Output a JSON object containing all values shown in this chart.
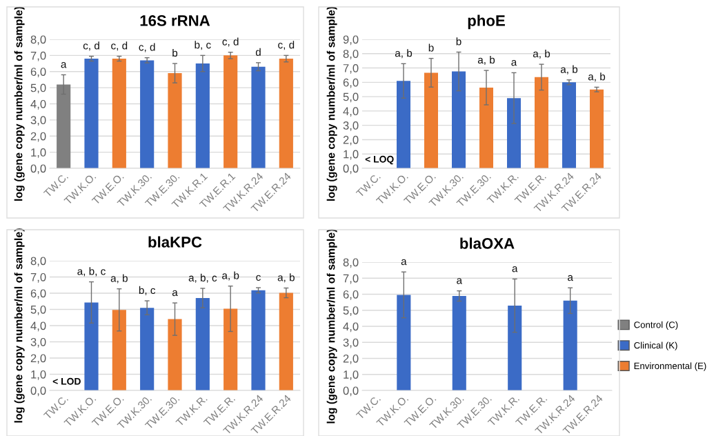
{
  "chart_data": [
    {
      "type": "bar",
      "title": "16S rRNA",
      "ylabel": "log (gene copy number/ml of sample)",
      "grid": "y",
      "categories": [
        "TW.C.",
        "TW.K.O.",
        "TW.E.O.",
        "TW.K.30.",
        "TW.E.30.",
        "TW.K.R.1",
        "TW.E.R.1",
        "TW.K.R.24",
        "TW.E.R.24"
      ],
      "ylim": [
        0,
        8
      ],
      "yticks": [
        {
          "value": 0,
          "label": "0,0"
        },
        {
          "value": 1,
          "label": "1,0"
        },
        {
          "value": 2,
          "label": "2,0"
        },
        {
          "value": 3,
          "label": "3,0"
        },
        {
          "value": 4,
          "label": "4,0"
        },
        {
          "value": 5,
          "label": "5,0"
        },
        {
          "value": 6,
          "label": "6,0"
        },
        {
          "value": 7,
          "label": "7,0"
        },
        {
          "value": 8,
          "label": "8,0"
        }
      ],
      "series": [
        {
          "color": "#808080",
          "values": [
            5.2,
            null,
            null,
            null,
            null,
            null,
            null,
            null,
            null
          ],
          "errors": [
            0.6,
            null,
            null,
            null,
            null,
            null,
            null,
            null,
            null
          ],
          "value_labels": [
            "a",
            null,
            null,
            null,
            null,
            null,
            null,
            null,
            null
          ]
        },
        {
          "color": "#3b6bc6",
          "values": [
            null,
            6.8,
            null,
            6.7,
            null,
            6.5,
            null,
            6.3,
            null
          ],
          "errors": [
            null,
            0.15,
            null,
            0.16,
            null,
            0.5,
            null,
            0.25,
            null
          ],
          "value_labels": [
            null,
            "c, d",
            null,
            "c, d",
            null,
            "b, c",
            null,
            "d",
            null
          ]
        },
        {
          "color": "#ed7d31",
          "values": [
            null,
            null,
            6.8,
            null,
            5.9,
            null,
            7.0,
            null,
            6.8
          ],
          "errors": [
            null,
            null,
            0.15,
            null,
            0.6,
            null,
            0.2,
            null,
            0.2
          ],
          "value_labels": [
            null,
            null,
            "c, d",
            null,
            "b",
            null,
            "c, d",
            null,
            "c, d"
          ]
        }
      ]
    },
    {
      "type": "bar",
      "title": "phoE",
      "ylabel": "log (gene copy number/ml of sample)",
      "grid": "y",
      "categories": [
        "TW.C.",
        "TW.K.O.",
        "TW.E.O.",
        "TW.K.30.",
        "TW.E.30.",
        "TW.K.R.",
        "TW.E.R.",
        "TW.K.R.24",
        "TW.E.R.24"
      ],
      "ylim": [
        0,
        9
      ],
      "yticks": [
        {
          "value": 0,
          "label": "0,0"
        },
        {
          "value": 1,
          "label": "1,0"
        },
        {
          "value": 2,
          "label": "2,0"
        },
        {
          "value": 3,
          "label": "3,0"
        },
        {
          "value": 4,
          "label": "4,0"
        },
        {
          "value": 5,
          "label": "5,0"
        },
        {
          "value": 6,
          "label": "6,0"
        },
        {
          "value": 7,
          "label": "7,0"
        },
        {
          "value": 8,
          "label": "8,0"
        },
        {
          "value": 9,
          "label": "9,0"
        }
      ],
      "annotations": [
        "< LOQ"
      ],
      "series": [
        {
          "color": "#808080",
          "values": [
            null,
            null,
            null,
            null,
            null,
            null,
            null,
            null,
            null
          ]
        },
        {
          "color": "#3b6bc6",
          "values": [
            null,
            6.1,
            null,
            6.76,
            null,
            4.9,
            null,
            6.0,
            null
          ],
          "errors": [
            null,
            1.2,
            null,
            1.35,
            null,
            1.77,
            null,
            0.17,
            null
          ],
          "value_labels": [
            null,
            "a, b",
            null,
            "b",
            null,
            "a",
            null,
            "a, b",
            null
          ]
        },
        {
          "color": "#ed7d31",
          "values": [
            null,
            null,
            6.67,
            null,
            5.63,
            null,
            6.36,
            null,
            5.5
          ],
          "errors": [
            null,
            null,
            1.0,
            null,
            1.2,
            null,
            0.9,
            null,
            0.16
          ],
          "value_labels": [
            null,
            null,
            "b",
            null,
            "a, b",
            null,
            "a, b",
            null,
            "a, b"
          ]
        }
      ]
    },
    {
      "type": "bar",
      "title": "blaKPC",
      "ylabel": "log (gene copy number/ml of sample)",
      "grid": "y",
      "categories": [
        "TW.C.",
        "TW.K.O.",
        "TW.E.O.",
        "TW.K.30.",
        "TW.E.30.",
        "TW.K.R.",
        "TW.E.R.",
        "TW.K.R.24",
        "TW.E.R.24"
      ],
      "ylim": [
        0,
        8
      ],
      "yticks": [
        {
          "value": 0,
          "label": "0,0"
        },
        {
          "value": 1,
          "label": "1,0"
        },
        {
          "value": 2,
          "label": "2,0"
        },
        {
          "value": 3,
          "label": "3,0"
        },
        {
          "value": 4,
          "label": "4,0"
        },
        {
          "value": 5,
          "label": "5,0"
        },
        {
          "value": 6,
          "label": "6,0"
        },
        {
          "value": 7,
          "label": "7,0"
        },
        {
          "value": 8,
          "label": "8,0"
        }
      ],
      "annotations": [
        "< LOD"
      ],
      "series": [
        {
          "color": "#808080",
          "values": [
            null,
            null,
            null,
            null,
            null,
            null,
            null,
            null,
            null
          ]
        },
        {
          "color": "#3b6bc6",
          "values": [
            null,
            5.43,
            null,
            5.1,
            null,
            5.7,
            null,
            6.18,
            null
          ],
          "errors": [
            null,
            1.27,
            null,
            0.43,
            null,
            0.6,
            null,
            0.16,
            null
          ],
          "value_labels": [
            null,
            "a, b, c",
            null,
            "b, c",
            null,
            "a, b, c",
            null,
            "c",
            null
          ]
        },
        {
          "color": "#ed7d31",
          "values": [
            null,
            null,
            4.97,
            null,
            4.4,
            null,
            5.04,
            null,
            6.02
          ],
          "errors": [
            null,
            null,
            1.3,
            null,
            1.0,
            null,
            1.4,
            null,
            0.3
          ],
          "value_labels": [
            null,
            null,
            "a, b",
            null,
            "a",
            null,
            "a, b",
            null,
            "a, b"
          ]
        }
      ]
    },
    {
      "type": "bar",
      "title": "blaOXA",
      "ylabel": "log (gene copy number/ml of sample)",
      "grid": "y",
      "legend": "right",
      "categories": [
        "TW.C.",
        "TW.K.O.",
        "TW.E.O.",
        "TW.K.30.",
        "TW.E.30.",
        "TW.K.R.",
        "TW.E.R.",
        "TW.K.R.24",
        "TW.E.R.24"
      ],
      "ylim": [
        0,
        8
      ],
      "yticks": [
        {
          "value": 0,
          "label": "0,0"
        },
        {
          "value": 1,
          "label": "1,0"
        },
        {
          "value": 2,
          "label": "2,0"
        },
        {
          "value": 3,
          "label": "3,0"
        },
        {
          "value": 4,
          "label": "4,0"
        },
        {
          "value": 5,
          "label": "5,0"
        },
        {
          "value": 6,
          "label": "6,0"
        },
        {
          "value": 7,
          "label": "7,0"
        },
        {
          "value": 8,
          "label": "8,0"
        }
      ],
      "series": [
        {
          "name": "Control (C)",
          "color": "#808080",
          "values": [
            null,
            null,
            null,
            null,
            null,
            null,
            null,
            null,
            null
          ]
        },
        {
          "name": "Clinical (K)",
          "color": "#3b6bc6",
          "values": [
            null,
            5.96,
            null,
            5.89,
            null,
            5.29,
            null,
            5.6,
            null
          ],
          "errors": [
            null,
            1.43,
            null,
            0.32,
            null,
            1.66,
            null,
            0.8,
            null
          ],
          "value_labels": [
            null,
            "a",
            null,
            "a",
            null,
            "a",
            null,
            "a",
            null
          ]
        },
        {
          "name": "Environmental (E)",
          "color": "#ed7d31",
          "values": [
            null,
            null,
            null,
            null,
            null,
            null,
            null,
            null,
            null
          ]
        }
      ]
    }
  ]
}
